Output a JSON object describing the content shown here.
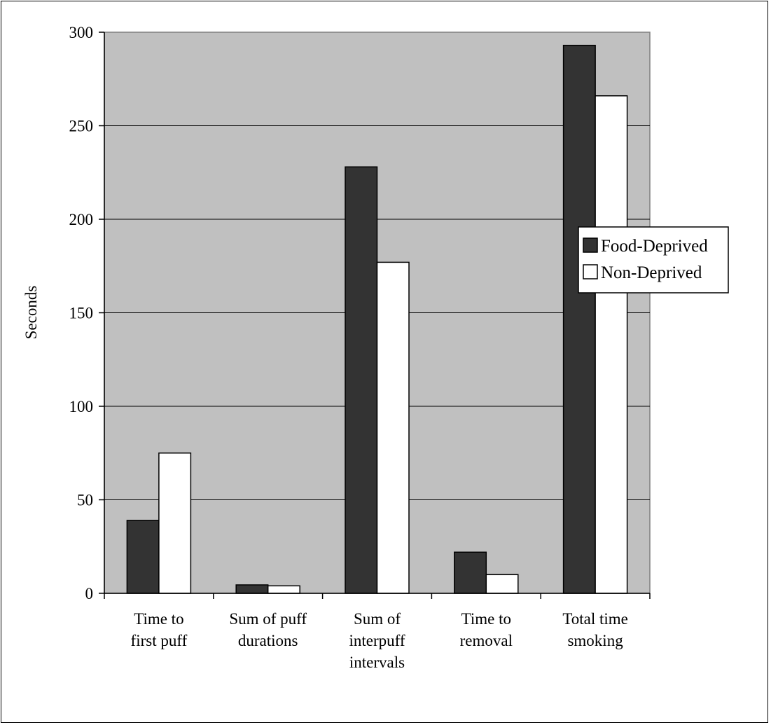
{
  "chart_data": {
    "type": "bar",
    "title": "",
    "xlabel": "",
    "ylabel": "Seconds",
    "ylim": [
      0,
      300
    ],
    "yticks": [
      0,
      50,
      100,
      150,
      200,
      250,
      300
    ],
    "grid": true,
    "legend_position": "right",
    "categories": [
      [
        "Time to",
        "first puff"
      ],
      [
        "Sum of puff",
        "durations"
      ],
      [
        "Sum of",
        "interpuff",
        "intervals"
      ],
      [
        "Time to",
        "removal"
      ],
      [
        "Total time",
        "smoking"
      ]
    ],
    "series": [
      {
        "name": "Food-Deprived",
        "color": "#333333",
        "values": [
          39,
          4.5,
          228,
          22,
          293
        ]
      },
      {
        "name": "Non-Deprived",
        "color": "#ffffff",
        "values": [
          75,
          4,
          177,
          10,
          266
        ]
      }
    ],
    "plot_background": "#c0c0c0"
  }
}
